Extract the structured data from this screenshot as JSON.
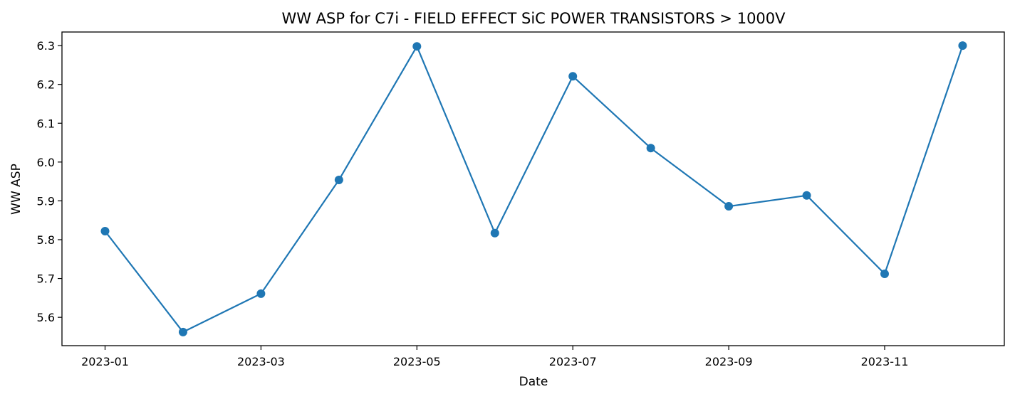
{
  "chart_data": {
    "type": "line",
    "title": "WW ASP for C7i - FIELD EFFECT SiC POWER TRANSISTORS > 1000V",
    "xlabel": "Date",
    "ylabel": "WW ASP",
    "x": [
      "2023-01",
      "2023-02",
      "2023-03",
      "2023-04",
      "2023-05",
      "2023-06",
      "2023-07",
      "2023-08",
      "2023-09",
      "2023-10",
      "2023-11",
      "2023-12"
    ],
    "values": [
      5.822,
      5.562,
      5.661,
      5.954,
      6.298,
      5.817,
      6.221,
      6.036,
      5.886,
      5.914,
      5.712,
      6.3
    ],
    "x_ticks": [
      "2023-01",
      "2023-03",
      "2023-05",
      "2023-07",
      "2023-09",
      "2023-11"
    ],
    "y_ticks": [
      "5.6",
      "5.7",
      "5.8",
      "5.9",
      "6.0",
      "6.1",
      "6.2",
      "6.3"
    ],
    "ylim": [
      5.527,
      6.335
    ],
    "grid": false,
    "markers": true,
    "line_color": "#1f77b4"
  }
}
